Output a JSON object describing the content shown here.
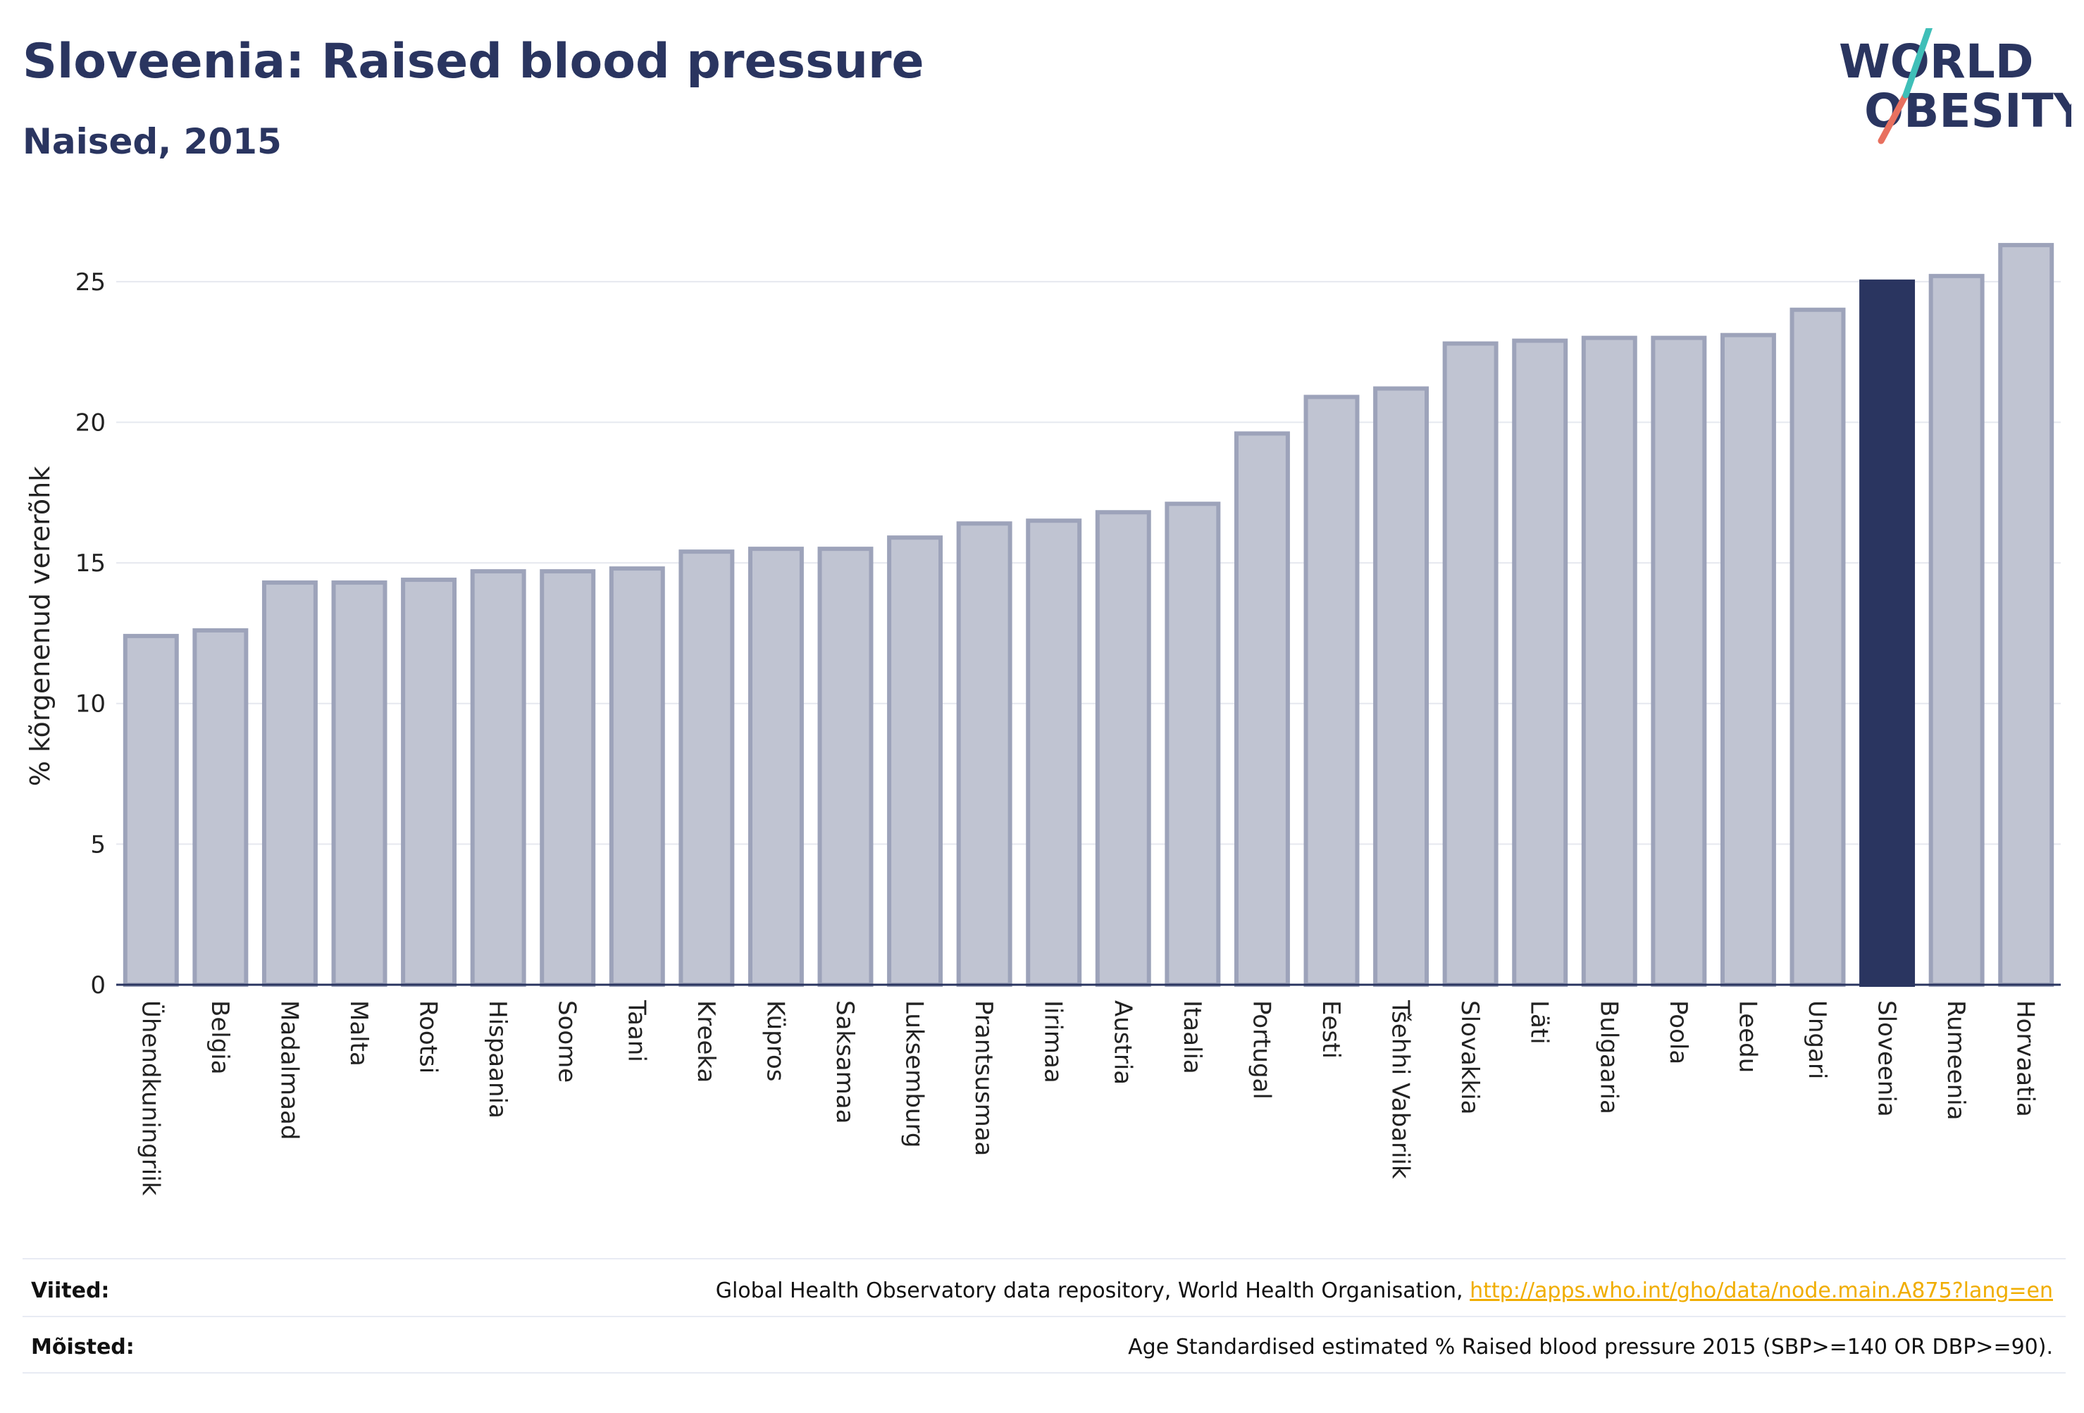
{
  "header": {
    "title": "Sloveenia: Raised blood pressure",
    "subtitle": "Naised, 2015"
  },
  "logo": {
    "line1": "WORLD",
    "line2": "OBESITY",
    "accent_colors": [
      "#3fbfb8",
      "#e8705f"
    ]
  },
  "colors": {
    "bar": "#c0c4d2",
    "bar_stroke": "#9da3ba",
    "highlight": "#2a3560",
    "text": "#2a3560"
  },
  "chart_data": {
    "type": "bar",
    "ylabel": "% kõrgenenud vererõhk",
    "ylim": [
      0,
      27.5
    ],
    "yticks": [
      0,
      5,
      10,
      15,
      20,
      25
    ],
    "grid": true,
    "highlight": "Sloveenia",
    "categories": [
      "Ühendkuningriik",
      "Belgia",
      "Madalmaad",
      "Malta",
      "Rootsi",
      "Hispaania",
      "Soome",
      "Taani",
      "Kreeka",
      "Küpros",
      "Saksamaa",
      "Luksemburg",
      "Prantsusmaa",
      "Iirimaa",
      "Austria",
      "Itaalia",
      "Portugal",
      "Eesti",
      "Tšehhi Vabariik",
      "Slovakkia",
      "Läti",
      "Bulgaaria",
      "Poola",
      "Leedu",
      "Ungari",
      "Sloveenia",
      "Rumeenia",
      "Horvaatia"
    ],
    "values": [
      12.4,
      12.6,
      14.3,
      14.3,
      14.4,
      14.7,
      14.7,
      14.8,
      15.4,
      15.5,
      15.5,
      15.9,
      16.4,
      16.5,
      16.8,
      17.1,
      19.6,
      20.9,
      21.2,
      22.8,
      22.9,
      23.0,
      23.0,
      23.1,
      24.0,
      25.0,
      25.2,
      26.3
    ]
  },
  "footer": {
    "sources_label": "Viited:",
    "sources_text": "Global Health Observatory data repository, World Health Organisation,",
    "sources_link": "http://apps.who.int/gho/data/node.main.A875?lang=en",
    "definitions_label": "Mõisted:",
    "definitions_text": "Age Standardised estimated % Raised blood pressure 2015 (SBP>=140 OR DBP>=90)."
  }
}
